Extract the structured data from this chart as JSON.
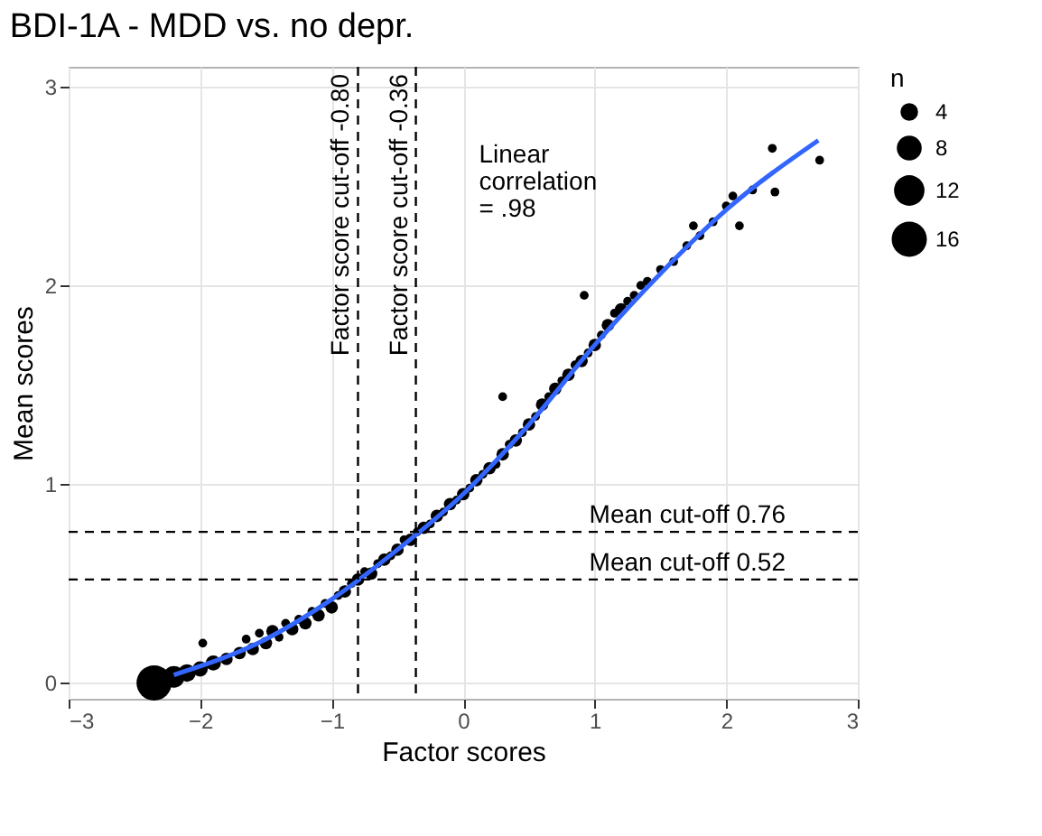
{
  "chart_data": {
    "type": "bubble",
    "title": "BDI-1A - MDD vs. no depr.",
    "xlabel": "Factor scores",
    "ylabel": "Mean scores",
    "legend_title": "n",
    "xlim": [
      -3,
      3
    ],
    "ylim": [
      -0.08,
      3.1
    ],
    "xticks": [
      -3,
      -2,
      -1,
      0,
      1,
      2,
      3
    ],
    "yticks": [
      0,
      1,
      2,
      3
    ],
    "grid": true,
    "legend": "right",
    "size_legend": [
      4,
      8,
      12,
      16
    ],
    "series": [
      {
        "color": "#000000",
        "x": [
          -2.35,
          -2.2,
          -2.1,
          -2.0,
          -1.9,
          -1.98,
          -1.8,
          -1.7,
          -1.65,
          -1.6,
          -1.55,
          -1.5,
          -1.45,
          -1.4,
          -1.35,
          -1.3,
          -1.25,
          -1.2,
          -1.15,
          -1.1,
          -1.05,
          -1.0,
          -0.95,
          -0.9,
          -0.85,
          -0.8,
          -0.75,
          -0.7,
          -0.65,
          -0.6,
          -0.55,
          -0.5,
          -0.45,
          -0.4,
          -0.35,
          -0.3,
          -0.25,
          -0.2,
          -0.15,
          -0.1,
          -0.05,
          0,
          0.05,
          0.1,
          0.15,
          0.2,
          0.25,
          0.3,
          0.3,
          0.35,
          0.4,
          0.45,
          0.5,
          0.55,
          0.6,
          0.65,
          0.7,
          0.75,
          0.8,
          0.85,
          0.9,
          0.92,
          0.95,
          1.0,
          1.05,
          1.1,
          1.15,
          1.2,
          1.25,
          1.3,
          1.35,
          1.4,
          1.5,
          1.6,
          1.7,
          1.75,
          1.8,
          1.9,
          2.0,
          2.05,
          2.1,
          2.2,
          2.35,
          2.37,
          2.71
        ],
        "values": [
          0,
          0.03,
          0.05,
          0.07,
          0.1,
          0.2,
          0.12,
          0.15,
          0.22,
          0.17,
          0.25,
          0.2,
          0.26,
          0.23,
          0.3,
          0.27,
          0.32,
          0.3,
          0.36,
          0.34,
          0.4,
          0.38,
          0.44,
          0.46,
          0.5,
          0.52,
          0.56,
          0.55,
          0.6,
          0.62,
          0.64,
          0.67,
          0.72,
          0.72,
          0.76,
          0.78,
          0.8,
          0.84,
          0.86,
          0.9,
          0.92,
          0.95,
          0.98,
          1.02,
          1.05,
          1.08,
          1.1,
          1.15,
          1.44,
          1.2,
          1.22,
          1.26,
          1.3,
          1.34,
          1.4,
          1.44,
          1.48,
          1.52,
          1.55,
          1.6,
          1.62,
          1.95,
          1.66,
          1.7,
          1.75,
          1.8,
          1.86,
          1.88,
          1.92,
          1.95,
          2.0,
          2.02,
          2.08,
          2.12,
          2.2,
          2.3,
          2.25,
          2.32,
          2.4,
          2.45,
          2.3,
          2.48,
          2.69,
          2.47,
          2.63
        ],
        "sizes": [
          16,
          6,
          4,
          3,
          3,
          1,
          2,
          2,
          1,
          2,
          1,
          2,
          2,
          1,
          1,
          2,
          1,
          2,
          1,
          2,
          1,
          2,
          1,
          2,
          1,
          2,
          1,
          2,
          1,
          2,
          1,
          2,
          1,
          2,
          1,
          2,
          1,
          2,
          1,
          2,
          1,
          2,
          1,
          2,
          1,
          2,
          1,
          2,
          1,
          1,
          2,
          1,
          2,
          1,
          2,
          1,
          2,
          1,
          2,
          1,
          2,
          1,
          1,
          2,
          1,
          2,
          1,
          2,
          1,
          1,
          1,
          1,
          1,
          1,
          1,
          1,
          1,
          1,
          1,
          1,
          1,
          1,
          1,
          1,
          1
        ]
      },
      {
        "type": "line",
        "color": "#3366ff",
        "x": [
          -2.2,
          -1.5,
          -1.0,
          -0.5,
          0,
          0.5,
          1.0,
          1.5,
          2.0,
          2.7
        ],
        "values": [
          0.04,
          0.22,
          0.42,
          0.67,
          0.95,
          1.3,
          1.7,
          2.06,
          2.38,
          2.73
        ]
      }
    ],
    "ref_lines": [
      {
        "axis": "x",
        "value": -0.8,
        "label": "Factor score cut-off -0.80",
        "line_style": "dashed",
        "color": "#000000"
      },
      {
        "axis": "x",
        "value": -0.36,
        "label": "Factor score cut-off -0.36",
        "line_style": "dashed",
        "color": "#000000"
      },
      {
        "axis": "y",
        "value": 0.76,
        "label": "Mean cut-off 0.76",
        "line_style": "dashed",
        "color": "#000000"
      },
      {
        "axis": "y",
        "value": 0.52,
        "label": "Mean cut-off 0.52",
        "line_style": "dashed",
        "color": "#000000"
      }
    ],
    "annotations": [
      "Linear\ncorrelation\n= .98"
    ]
  }
}
